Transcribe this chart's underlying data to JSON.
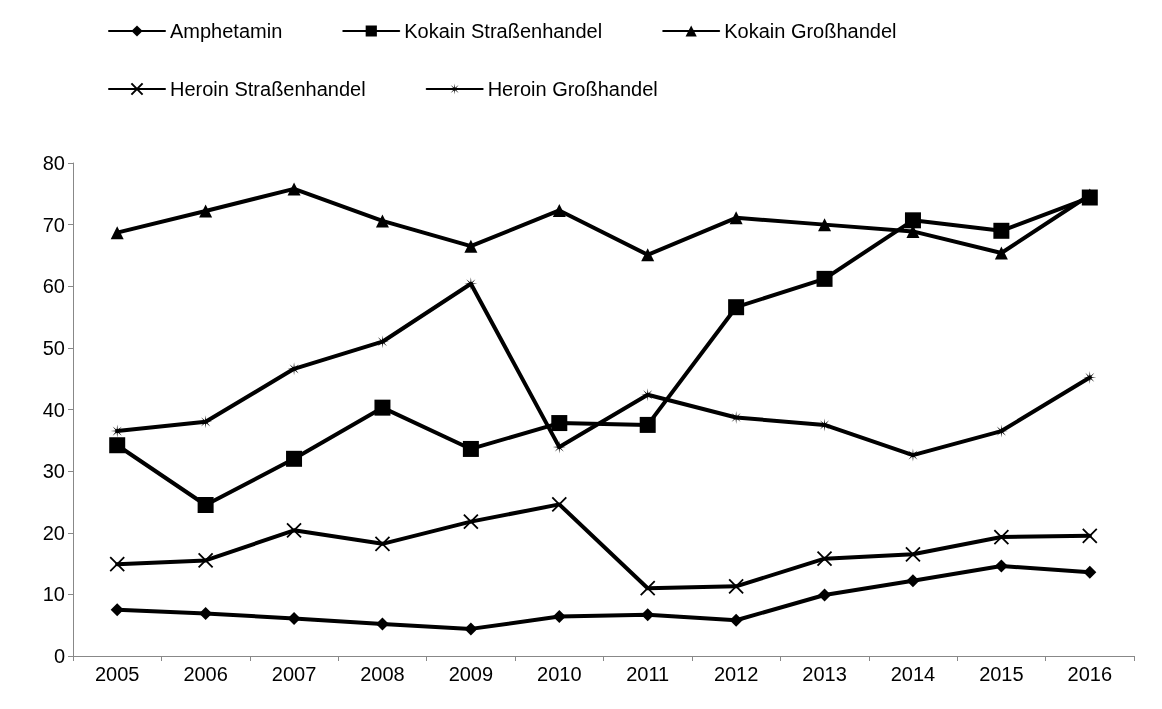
{
  "chart_data": {
    "type": "line",
    "categories": [
      "2005",
      "2006",
      "2007",
      "2008",
      "2009",
      "2010",
      "2011",
      "2012",
      "2013",
      "2014",
      "2015",
      "2016"
    ],
    "series": [
      {
        "name": "Amphetamin",
        "color": "#000000",
        "marker": "diamond",
        "values": [
          7.5,
          6.9,
          6.1,
          5.2,
          4.4,
          6.4,
          6.7,
          5.8,
          9.9,
          12.2,
          14.6,
          13.6
        ]
      },
      {
        "name": "Kokain Straßenhandel",
        "color": "#000000",
        "marker": "square",
        "values": [
          34.2,
          24.5,
          32.0,
          40.3,
          33.6,
          37.8,
          37.5,
          56.6,
          61.2,
          70.7,
          69.0,
          74.4
        ]
      },
      {
        "name": "Kokain Großhandel",
        "color": "#000000",
        "marker": "triangle",
        "values": [
          68.7,
          72.2,
          75.8,
          70.6,
          66.5,
          72.3,
          65.1,
          71.1,
          70.0,
          68.9,
          65.4,
          74.8
        ]
      },
      {
        "name": "Heroin Straßenhandel",
        "color": "#000000",
        "marker": "cross",
        "values": [
          14.9,
          15.5,
          20.4,
          18.2,
          21.8,
          24.6,
          11.0,
          11.3,
          15.8,
          16.5,
          19.3,
          19.5
        ]
      },
      {
        "name": "Heroin Großhandel",
        "color": "#000000",
        "marker": "star",
        "values": [
          36.5,
          38.0,
          46.6,
          51.0,
          60.4,
          33.9,
          42.4,
          38.7,
          37.5,
          32.6,
          36.5,
          45.2
        ]
      }
    ],
    "ylim": [
      0,
      80
    ],
    "yticks": [
      0,
      10,
      20,
      30,
      40,
      50,
      60,
      70,
      80
    ],
    "grid": false,
    "legend": "top left",
    "line_style": "solid"
  }
}
